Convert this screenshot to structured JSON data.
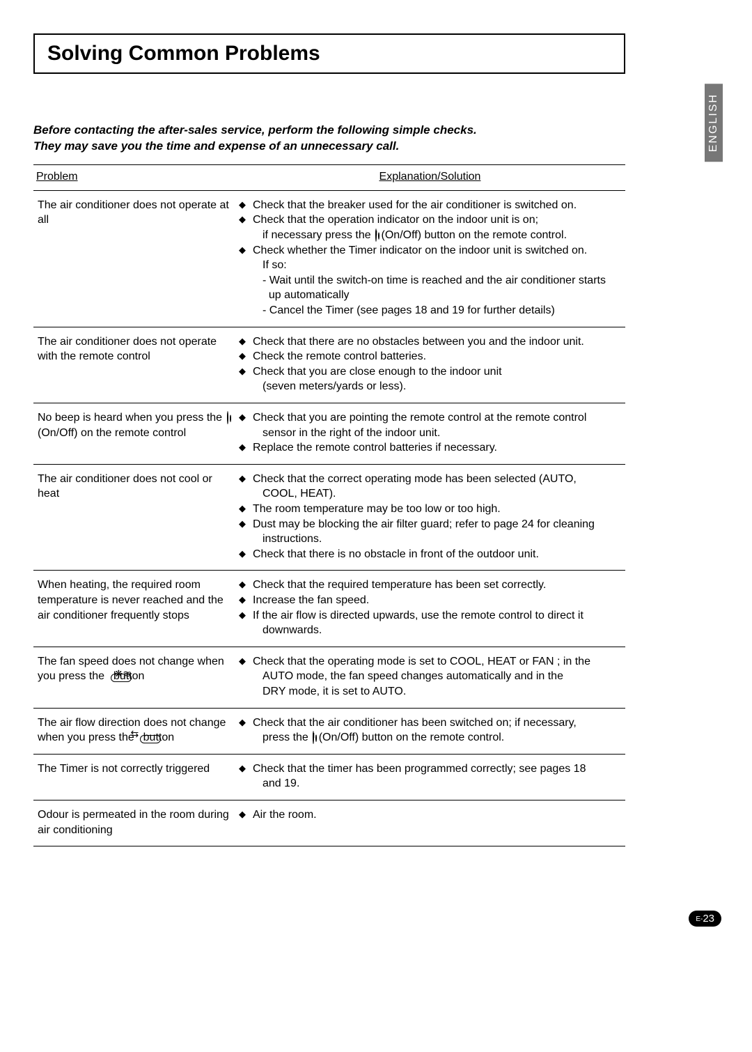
{
  "title": "Solving Common Problems",
  "intro_line1": "Before contacting the after-sales service, perform the following simple checks.",
  "intro_line2": "They may save you the time and expense of an unnecessary call.",
  "headers": {
    "problem": "Problem",
    "solution": "Explanation/Solution"
  },
  "side_tab": "ENGLISH",
  "page_prefix": "E-",
  "page_number": "23",
  "rows": [
    {
      "problem": "The air conditioner does not operate at all",
      "solutions": [
        {
          "text": "Check that the breaker used for the air conditioner is switched on."
        },
        {
          "text": "Check that the operation indicator on the indoor unit is on;",
          "subs": [
            {
              "type": "indent",
              "pre": "if necessary press the ",
              "icon": "power",
              "post": " (On/Off) button on the remote control."
            }
          ]
        },
        {
          "text": "Check whether the Timer indicator on the indoor unit is switched on.",
          "subs": [
            {
              "type": "indent",
              "text": "If so:"
            },
            {
              "type": "dash",
              "text": "- Wait until the switch-on time is reached and the air conditioner starts"
            },
            {
              "type": "indent",
              "text": "  up automatically"
            },
            {
              "type": "dash",
              "text": "- Cancel the Timer (see pages 18 and 19 for further details)"
            }
          ]
        }
      ]
    },
    {
      "problem": "The air conditioner does not operate with the remote control",
      "solutions": [
        {
          "text": "Check that there are no obstacles between you and the indoor unit."
        },
        {
          "text": "Check the remote control batteries."
        },
        {
          "text": "Check that you are close enough to the indoor unit",
          "subs": [
            {
              "type": "indent",
              "text": "(seven meters/yards or less)."
            }
          ]
        }
      ]
    },
    {
      "problem_parts": [
        {
          "text": "No beep is heard when you press the "
        },
        {
          "icon": "power"
        },
        {
          "text": " (On/Off) on the remote control"
        }
      ],
      "solutions": [
        {
          "text": "Check that you are pointing the remote control at the remote control",
          "subs": [
            {
              "type": "indent",
              "text": "sensor in the right of the indoor unit."
            }
          ]
        },
        {
          "text": "Replace the remote control batteries if necessary."
        }
      ]
    },
    {
      "problem": "The air conditioner does not cool or heat",
      "solutions": [
        {
          "text": "Check that the correct operating mode has been selected (AUTO,",
          "subs": [
            {
              "type": "indent",
              "text": "COOL, HEAT)."
            }
          ]
        },
        {
          "text": "The room temperature may be too low or too high."
        },
        {
          "text": "Dust may be blocking the air filter guard; refer to page 24 for cleaning",
          "subs": [
            {
              "type": "indent",
              "text": "instructions."
            }
          ]
        },
        {
          "text": "Check that there is no obstacle in front of the outdoor unit."
        }
      ]
    },
    {
      "problem": "When heating, the required room temperature is never reached and the air conditioner frequently stops",
      "solutions": [
        {
          "text": "Check that the required temperature has been set correctly."
        },
        {
          "text": "Increase the fan speed."
        },
        {
          "text": "If the air flow is directed upwards, use the remote control to direct it",
          "subs": [
            {
              "type": "indent",
              "text": "downwards."
            }
          ]
        }
      ]
    },
    {
      "problem_parts": [
        {
          "text": "The fan speed does not change when you press the "
        },
        {
          "icon": "fan"
        },
        {
          "text": " button"
        }
      ],
      "solutions": [
        {
          "text": "Check that the operating mode is set to COOL, HEAT or FAN ; in the",
          "subs": [
            {
              "type": "indent",
              "text": "AUTO mode, the fan speed changes automatically and in the"
            },
            {
              "type": "indent",
              "text": "DRY mode, it is set to AUTO."
            }
          ]
        }
      ]
    },
    {
      "problem_parts": [
        {
          "text": "The air flow direction does not change when you press the "
        },
        {
          "icon": "swing"
        },
        {
          "text": " button"
        }
      ],
      "solutions": [
        {
          "pre": "Check that the air conditioner has been switched on; if necessary,",
          "subs": [
            {
              "type": "indent",
              "pre": "press the ",
              "icon": "power",
              "post": " (On/Off) button on the remote control."
            }
          ]
        }
      ]
    },
    {
      "problem": "The Timer is not correctly triggered",
      "solutions": [
        {
          "text": "Check that the timer has been programmed correctly; see pages 18",
          "subs": [
            {
              "type": "indent",
              "text": "and 19."
            }
          ]
        }
      ]
    },
    {
      "problem": "Odour is permeated in the room during air conditioning",
      "solutions": [
        {
          "text": "Air the room."
        }
      ]
    }
  ]
}
